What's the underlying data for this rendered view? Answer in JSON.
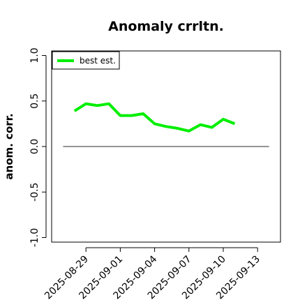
{
  "chart_data": {
    "type": "line",
    "title": "Anomaly crrltn.",
    "xlabel": "",
    "ylabel": "anom. corr.",
    "x": [
      "2025-08-28",
      "2025-08-29",
      "2025-08-30",
      "2025-08-31",
      "2025-09-01",
      "2025-09-02",
      "2025-09-03",
      "2025-09-04",
      "2025-09-05",
      "2025-09-06",
      "2025-09-07",
      "2025-09-08",
      "2025-09-09",
      "2025-09-10",
      "2025-09-11"
    ],
    "series": [
      {
        "name": "best est.",
        "color": "#00ee00",
        "values": [
          0.39,
          0.47,
          0.45,
          0.47,
          0.34,
          0.34,
          0.36,
          0.25,
          0.22,
          0.2,
          0.17,
          0.24,
          0.21,
          0.3,
          0.25
        ]
      }
    ],
    "reference_line": {
      "y": 0,
      "x_from": "2025-08-27",
      "x_to": "2025-09-14",
      "color": "#555555"
    },
    "xlim": [
      "2025-08-26",
      "2025-09-15"
    ],
    "ylim": [
      -1.05,
      1.05
    ],
    "x_ticks": [
      "2025-08-29",
      "2025-09-01",
      "2025-09-04",
      "2025-09-07",
      "2025-09-10",
      "2025-09-13"
    ],
    "y_ticks": [
      -1.0,
      -0.5,
      0.0,
      0.5,
      1.0
    ],
    "y_tick_labels": [
      "-1.0",
      "-0.5",
      "0.0",
      "0.5",
      "1.0"
    ],
    "grid": false,
    "legend_position": "top-left"
  }
}
